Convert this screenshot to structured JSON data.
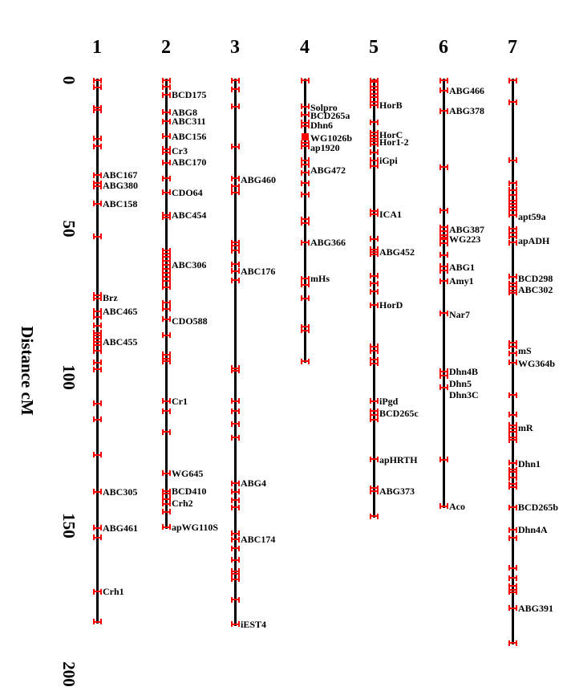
{
  "figure": {
    "axis_title": "Distance cM"
  },
  "chart_data": {
    "type": "linkage_map",
    "title": "",
    "axis": {
      "label": "Distance cM",
      "unit": "cM",
      "orientation": "vertical",
      "tick_values": [
        0,
        50,
        100,
        150,
        200
      ],
      "range": [
        0,
        200
      ]
    },
    "legend": "none",
    "grid": false,
    "colors": {
      "line": "#000000",
      "tick": "#ff0000",
      "label": "#000000",
      "background": "#ffffff"
    },
    "chromosomes": [
      {
        "name": "1",
        "length_cm": 182.4,
        "markers": [
          {
            "name": "ABC167",
            "cm": 31.9
          },
          {
            "name": "ABG380",
            "cm": 35.4
          },
          {
            "name": "ABC158",
            "cm": 41.6
          },
          {
            "name": "Brz",
            "cm": 73.2
          },
          {
            "name": "ABC465",
            "cm": 77.8
          },
          {
            "name": "ABC455",
            "cm": 88.1
          },
          {
            "name": "ABC305",
            "cm": 138.6
          },
          {
            "name": "ABG461",
            "cm": 150.8
          },
          {
            "name": "Crh1",
            "cm": 172.2
          }
        ],
        "ticks_cm": [
          0,
          2.4,
          9.2,
          10.0,
          19.7,
          22.2,
          31.9,
          34.6,
          35.7,
          41.6,
          52.7,
          72.4,
          73.5,
          77.8,
          79.7,
          82.7,
          85.1,
          86.0,
          87.0,
          88.1,
          89.2,
          91.1,
          95.1,
          97.3,
          108.9,
          114.3,
          126.2,
          138.6,
          150.8,
          154.0,
          172.2,
          182.4
        ]
      },
      {
        "name": "2",
        "length_cm": 150.5,
        "markers": [
          {
            "name": "BCD175",
            "cm": 4.9
          },
          {
            "name": "ABG8",
            "cm": 10.8
          },
          {
            "name": "ABC311",
            "cm": 13.8
          },
          {
            "name": "ABC156",
            "cm": 18.9
          },
          {
            "name": "Cr3",
            "cm": 23.8
          },
          {
            "name": "ABC170",
            "cm": 27.6
          },
          {
            "name": "CDO64",
            "cm": 37.8
          },
          {
            "name": "ABC454",
            "cm": 45.4
          },
          {
            "name": "ABC306",
            "cm": 62.2
          },
          {
            "name": "CDO588",
            "cm": 81.1
          },
          {
            "name": "Cr1",
            "cm": 108.1
          },
          {
            "name": "WG645",
            "cm": 132.4
          },
          {
            "name": "BCD410",
            "cm": 138.4
          },
          {
            "name": "Crh2",
            "cm": 142.4
          },
          {
            "name": "apWG110S",
            "cm": 150.5
          }
        ],
        "ticks_cm": [
          0,
          2.2,
          4.9,
          10.8,
          13.8,
          18.9,
          23.2,
          24.3,
          27.8,
          33.0,
          37.8,
          45.4,
          46.2,
          57.3,
          58.4,
          59.5,
          60.8,
          62.2,
          63.5,
          64.9,
          66.2,
          67.6,
          69.7,
          74.9,
          77.0,
          80.5,
          85.9,
          92.4,
          93.8,
          94.6,
          108.1,
          111.4,
          118.4,
          132.4,
          138.4,
          139.2,
          141.1,
          142.7,
          145.4,
          150.5
        ]
      },
      {
        "name": "3",
        "length_cm": 183.2,
        "markers": [
          {
            "name": "ABG460",
            "cm": 33.5
          },
          {
            "name": "ABC176",
            "cm": 64.3
          },
          {
            "name": "ABG4",
            "cm": 135.7
          },
          {
            "name": "ABC174",
            "cm": 154.6
          },
          {
            "name": "iEST4",
            "cm": 183.2
          }
        ],
        "ticks_cm": [
          0,
          3.0,
          8.9,
          22.4,
          33.0,
          35.7,
          37.8,
          54.6,
          55.7,
          57.3,
          61.9,
          64.3,
          67.3,
          97.0,
          97.8,
          108.1,
          111.4,
          115.7,
          120.3,
          135.7,
          138.6,
          141.4,
          143.8,
          152.7,
          154.6,
          157.6,
          161.6,
          165.4,
          166.2,
          168.1,
          174.9,
          183.2
        ]
      },
      {
        "name": "4",
        "length_cm": 94.6,
        "square_marker_cm": 19.0,
        "markers": [
          {
            "name": "Solpro",
            "cm": 9.2
          },
          {
            "name": "BCD265a",
            "cm": 11.9
          },
          {
            "name": "Dhn6",
            "cm": 15.1
          },
          {
            "name": "WG1026b",
            "cm": 19.5,
            "square": true
          },
          {
            "name": "ap1920",
            "cm": 22.7
          },
          {
            "name": "ABG472",
            "cm": 30.3
          },
          {
            "name": "ABG366",
            "cm": 54.6
          },
          {
            "name": "mHs",
            "cm": 66.8
          }
        ],
        "ticks_cm": [
          0,
          8.9,
          11.6,
          14.3,
          15.4,
          21.1,
          22.2,
          27.0,
          28.4,
          31.1,
          34.6,
          38.4,
          46.8,
          48.1,
          54.6,
          66.8,
          68.9,
          73.5,
          83.0,
          84.3,
          94.6
        ]
      },
      {
        "name": "5",
        "length_cm": 146.8,
        "markers": [
          {
            "name": "HorB",
            "cm": 8.4
          },
          {
            "name": "HorC",
            "cm": 18.4
          },
          {
            "name": "Hor1-2",
            "cm": 20.8
          },
          {
            "name": "iGpi",
            "cm": 27.0
          },
          {
            "name": "ICA1",
            "cm": 45.1
          },
          {
            "name": "ABG452",
            "cm": 57.8
          },
          {
            "name": "HorD",
            "cm": 75.7
          },
          {
            "name": "iPgd",
            "cm": 108.1
          },
          {
            "name": "BCD265c",
            "cm": 112.2
          },
          {
            "name": "apHRTH",
            "cm": 127.8
          },
          {
            "name": "ABG373",
            "cm": 138.4
          }
        ],
        "ticks_cm": [
          0,
          0.5,
          2.2,
          3.2,
          4.6,
          5.7,
          7.3,
          8.4,
          14.1,
          17.6,
          18.6,
          19.7,
          20.5,
          21.6,
          24.3,
          27.0,
          28.9,
          44.1,
          45.1,
          53.5,
          57.0,
          57.8,
          58.6,
          65.9,
          68.4,
          71.1,
          75.7,
          89.7,
          91.1,
          94.1,
          95.4,
          108.1,
          111.4,
          112.7,
          114.3,
          127.6,
          137.3,
          138.4,
          146.8
        ]
      },
      {
        "name": "6",
        "length_cm": 143.5,
        "markers": [
          {
            "name": "ABG466",
            "cm": 3.5
          },
          {
            "name": "ABG378",
            "cm": 10.3
          },
          {
            "name": "ABG387",
            "cm": 50.3
          },
          {
            "name": "WG223",
            "cm": 53.5
          },
          {
            "name": "ABG1",
            "cm": 63.0
          },
          {
            "name": "Amy1",
            "cm": 67.6
          },
          {
            "name": "Nar7",
            "cm": 78.9
          },
          {
            "name": "Dhn4B",
            "cm": 98.1
          },
          {
            "name": "Dhn5",
            "cm": 102.2
          },
          {
            "name": "Dhn3C",
            "cm": 106.0
          },
          {
            "name": "Aco",
            "cm": 143.5
          }
        ],
        "ticks_cm": [
          0,
          3.5,
          10.3,
          29.2,
          43.8,
          49.5,
          50.8,
          52.2,
          53.0,
          53.5,
          54.9,
          58.9,
          62.7,
          64.1,
          67.6,
          78.4,
          98.1,
          99.5,
          103.5,
          127.8,
          143.5
        ]
      },
      {
        "name": "7",
        "length_cm": 189.5,
        "markers": [
          {
            "name": "apt59a",
            "cm": 45.9
          },
          {
            "name": "apADH",
            "cm": 54.1
          },
          {
            "name": "BCD298",
            "cm": 66.8
          },
          {
            "name": "ABC302",
            "cm": 70.5
          },
          {
            "name": "mS",
            "cm": 91.1
          },
          {
            "name": "WG364b",
            "cm": 95.4
          },
          {
            "name": "mR",
            "cm": 117.0
          },
          {
            "name": "Dhn1",
            "cm": 129.2
          },
          {
            "name": "BCD265b",
            "cm": 143.8
          },
          {
            "name": "Dhn4A",
            "cm": 151.4
          },
          {
            "name": "ABG391",
            "cm": 177.8
          }
        ],
        "ticks_cm": [
          0,
          7.3,
          27.0,
          34.6,
          37.0,
          38.6,
          40.5,
          41.6,
          42.7,
          43.8,
          45.4,
          50.0,
          51.4,
          52.7,
          54.6,
          66.2,
          68.4,
          69.5,
          70.8,
          71.6,
          88.4,
          89.7,
          91.9,
          95.1,
          106.0,
          112.7,
          116.2,
          117.3,
          118.4,
          120.3,
          121.1,
          128.9,
          131.1,
          131.9,
          133.8,
          136.0,
          137.0,
          143.8,
          151.4,
          154.1,
          164.3,
          167.6,
          170.3,
          171.6,
          172.4,
          177.8,
          189.5
        ]
      }
    ]
  }
}
